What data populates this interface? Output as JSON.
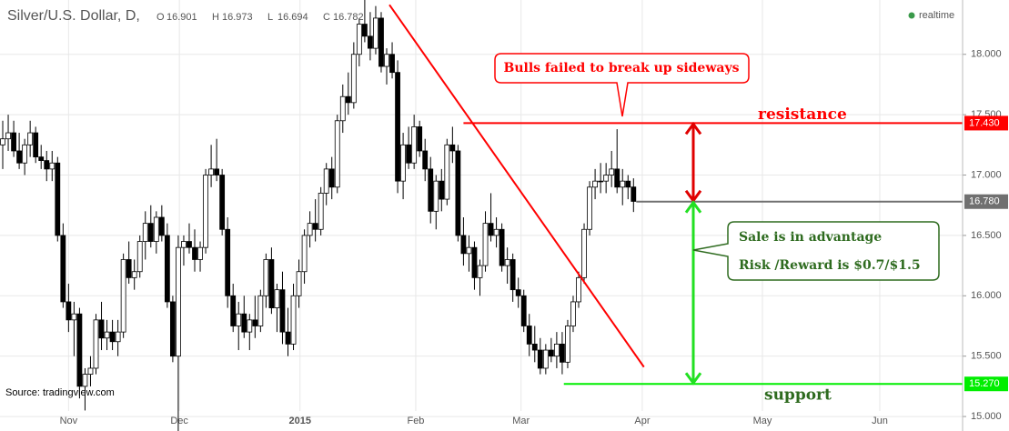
{
  "chart_data": {
    "type": "candlestick",
    "title": "Silver/U.S. Dollar, D,",
    "ohlc_labels": [
      "O",
      "H",
      "L",
      "C"
    ],
    "status": "realtime",
    "source": "Source: tradingview.com",
    "open": [
      17.25,
      17.3,
      17.35,
      17.2,
      17.1,
      17.25,
      17.35,
      17.15,
      17.12,
      17.05,
      17.1,
      16.5,
      15.95,
      15.8,
      15.85,
      15.25,
      15.35,
      15.4,
      15.8,
      15.65,
      15.7,
      15.62,
      15.7,
      16.3,
      16.15,
      16.2,
      16.45,
      16.6,
      16.45,
      16.65,
      16.5,
      15.95,
      15.5,
      16.4,
      16.45,
      16.4,
      16.3,
      16.4,
      17.0,
      17.05,
      17.0,
      16.55,
      16.0,
      15.75,
      15.85,
      15.7,
      15.8,
      15.75,
      16.0,
      16.3,
      15.9,
      16.05,
      15.7,
      15.6,
      16.0,
      16.2,
      16.5,
      16.6,
      16.55,
      16.85,
      17.05,
      16.9,
      17.45,
      17.65,
      17.6,
      18.0,
      18.25,
      18.15,
      18.05,
      18.3,
      17.9,
      18.0,
      17.85,
      16.95,
      17.25,
      17.1,
      17.4,
      17.2,
      17.05,
      16.7,
      16.95,
      16.8,
      17.25,
      17.2,
      16.5,
      16.35,
      16.4,
      16.15,
      16.25,
      16.6,
      16.5,
      16.55,
      16.25,
      16.3,
      16.05,
      16.0,
      15.75,
      15.6,
      15.55,
      15.4,
      15.55,
      15.5,
      15.6,
      15.45,
      15.75,
      15.95,
      16.15,
      16.55,
      16.9,
      16.95,
      16.95,
      17.0,
      17.05,
      16.9,
      16.95,
      16.901
    ],
    "high": [
      17.45,
      17.5,
      17.45,
      17.35,
      17.3,
      17.45,
      17.4,
      17.25,
      17.2,
      17.2,
      17.15,
      16.6,
      16.1,
      15.95,
      15.9,
      15.4,
      15.5,
      15.85,
      15.95,
      15.8,
      15.8,
      15.8,
      16.35,
      16.45,
      16.3,
      16.5,
      16.7,
      16.75,
      16.7,
      16.75,
      16.6,
      16.0,
      16.5,
      16.5,
      16.6,
      16.55,
      16.45,
      17.05,
      17.25,
      17.3,
      17.05,
      16.65,
      16.1,
      15.95,
      16.0,
      15.85,
      16.0,
      16.05,
      16.35,
      16.4,
      16.1,
      16.2,
      15.9,
      16.1,
      16.3,
      16.55,
      16.7,
      16.8,
      16.9,
      17.1,
      17.15,
      17.5,
      17.75,
      17.85,
      18.1,
      18.3,
      18.45,
      18.35,
      18.4,
      18.35,
      18.05,
      18.1,
      17.95,
      17.35,
      17.4,
      17.5,
      17.45,
      17.3,
      17.15,
      17.0,
      17.05,
      17.3,
      17.4,
      17.25,
      16.65,
      16.5,
      16.45,
      16.3,
      16.7,
      16.85,
      16.65,
      16.6,
      16.4,
      16.35,
      16.15,
      16.05,
      15.85,
      15.75,
      15.65,
      15.6,
      15.65,
      15.7,
      15.7,
      15.8,
      16.0,
      16.2,
      16.6,
      16.95,
      17.05,
      17.1,
      17.1,
      17.2,
      17.38,
      17.05,
      17.0,
      16.973
    ],
    "low": [
      17.05,
      17.2,
      17.15,
      17.05,
      17.0,
      17.15,
      17.1,
      17.05,
      16.95,
      16.95,
      16.45,
      15.9,
      15.7,
      15.5,
      15.15,
      15.05,
      15.25,
      15.35,
      15.55,
      15.55,
      15.55,
      15.5,
      15.65,
      16.1,
      16.05,
      16.15,
      16.3,
      16.4,
      16.35,
      16.45,
      15.9,
      15.45,
      14.85,
      16.25,
      16.35,
      16.2,
      16.2,
      16.35,
      16.9,
      16.95,
      16.5,
      15.9,
      15.7,
      15.55,
      15.65,
      15.55,
      15.65,
      15.7,
      15.9,
      15.85,
      15.7,
      15.6,
      15.5,
      15.55,
      15.9,
      16.1,
      16.4,
      16.45,
      16.5,
      16.75,
      16.8,
      16.85,
      17.35,
      17.5,
      17.55,
      17.9,
      18.1,
      17.95,
      18.0,
      17.85,
      17.75,
      17.8,
      16.85,
      16.8,
      17.05,
      17.05,
      17.15,
      16.95,
      16.6,
      16.55,
      16.7,
      16.75,
      17.1,
      16.45,
      16.25,
      16.2,
      16.05,
      16.0,
      16.2,
      16.45,
      16.4,
      16.2,
      16.1,
      15.95,
      15.9,
      15.7,
      15.5,
      15.45,
      15.35,
      15.35,
      15.45,
      15.4,
      15.35,
      15.4,
      15.7,
      15.9,
      16.1,
      16.5,
      16.8,
      16.85,
      16.85,
      16.9,
      16.85,
      16.75,
      16.8,
      16.694
    ],
    "close": [
      17.3,
      17.35,
      17.2,
      17.1,
      17.25,
      17.35,
      17.15,
      17.12,
      17.05,
      17.1,
      16.5,
      15.95,
      15.8,
      15.85,
      15.25,
      15.35,
      15.4,
      15.8,
      15.65,
      15.7,
      15.62,
      15.7,
      16.3,
      16.15,
      16.2,
      16.45,
      16.6,
      16.45,
      16.65,
      16.5,
      15.95,
      15.5,
      16.4,
      16.45,
      16.4,
      16.3,
      16.4,
      17.0,
      17.05,
      17.0,
      16.55,
      16.0,
      15.75,
      15.85,
      15.7,
      15.8,
      15.75,
      16.0,
      16.3,
      15.9,
      16.05,
      15.7,
      15.6,
      16.0,
      16.2,
      16.5,
      16.6,
      16.55,
      16.85,
      17.05,
      16.9,
      17.45,
      17.65,
      17.6,
      18.0,
      18.25,
      18.15,
      18.05,
      18.3,
      17.9,
      18.0,
      17.85,
      16.95,
      17.25,
      17.1,
      17.4,
      17.2,
      17.05,
      16.7,
      16.95,
      16.8,
      17.25,
      17.2,
      16.5,
      16.35,
      16.4,
      16.15,
      16.25,
      16.6,
      16.5,
      16.55,
      16.25,
      16.3,
      16.05,
      16.0,
      15.75,
      15.6,
      15.55,
      15.4,
      15.55,
      15.5,
      15.6,
      15.45,
      15.75,
      15.95,
      16.15,
      16.55,
      16.9,
      16.95,
      16.95,
      17.0,
      17.05,
      16.9,
      16.95,
      16.9,
      16.782
    ],
    "up_color": "#ffffff",
    "down_color": "#000000",
    "xlim": [
      -0.5,
      175
    ],
    "xticks": [
      {
        "value": 12,
        "label": "Nov"
      },
      {
        "value": 32.2,
        "label": "Dec"
      },
      {
        "value": 54.2,
        "label": "2015"
      },
      {
        "value": 75.3,
        "label": "Feb"
      },
      {
        "value": 94.5,
        "label": "Mar"
      },
      {
        "value": 116.6,
        "label": "Apr"
      },
      {
        "value": 138.5,
        "label": "May"
      },
      {
        "value": 159.9,
        "label": "Jun"
      }
    ],
    "ylim": [
      14.88,
      18.45
    ],
    "yticks": [
      {
        "value": 15,
        "label": "15.000"
      },
      {
        "value": 15.5,
        "label": "15.500"
      },
      {
        "value": 16,
        "label": "16.000"
      },
      {
        "value": 16.5,
        "label": "16.500"
      },
      {
        "value": 17,
        "label": "17.000"
      },
      {
        "value": 17.5,
        "label": "17.500"
      },
      {
        "value": 18,
        "label": "18.000"
      }
    ],
    "grid": true,
    "levels": [
      {
        "value": 17.43,
        "label": "17.430",
        "color": "#ff0000",
        "from": 84,
        "name": "resistance"
      },
      {
        "value": 16.78,
        "label": "16.780",
        "color": "#707070",
        "from": 115.5
      },
      {
        "value": 15.27,
        "label": "15.270",
        "color": "#00ee00",
        "from": 102.3,
        "name": "support"
      }
    ],
    "trendline": {
      "x": [
        70.5,
        116.9
      ],
      "y": [
        18.41,
        15.41
      ],
      "color": "#ff0000"
    },
    "callouts": [
      {
        "text": "Bulls failed to break up sideways",
        "color": "#ff0000"
      },
      {
        "lines": [
          "Sale is in advantage",
          "Risk /Reward is $0.7/$1.5"
        ],
        "color": "#2e6b1f"
      }
    ]
  }
}
